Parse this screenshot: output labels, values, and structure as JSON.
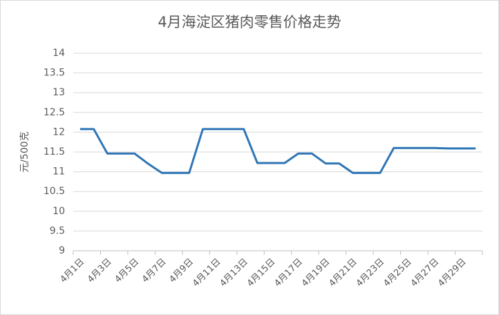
{
  "chart_data": {
    "type": "line",
    "title": "4月海淀区猪肉零售价格走势",
    "y_label": "元/500克",
    "categories": [
      "4月1日",
      null,
      "4月3日",
      null,
      "4月5日",
      null,
      "4月7日",
      null,
      "4月9日",
      null,
      "4月11日",
      null,
      "4月13日",
      null,
      "4月15日",
      null,
      "4月17日",
      null,
      "4月19日",
      null,
      "4月21日",
      null,
      "4月23日",
      null,
      "4月25日",
      null,
      "4月27日",
      null,
      "4月29日",
      null
    ],
    "values": [
      12.08,
      12.08,
      11.46,
      11.46,
      11.46,
      11.2,
      10.97,
      10.97,
      10.97,
      12.08,
      12.08,
      12.08,
      12.08,
      11.22,
      11.22,
      11.22,
      11.46,
      11.46,
      11.21,
      11.21,
      10.97,
      10.97,
      10.97,
      11.6,
      11.6,
      11.6,
      11.6,
      11.59,
      11.59,
      11.59
    ],
    "color": "#2e75b6",
    "ylim": [
      9,
      14
    ],
    "yticks": [
      9,
      9.5,
      10,
      10.5,
      11,
      11.5,
      12,
      12.5,
      13,
      13.5,
      14
    ],
    "grid": true
  }
}
